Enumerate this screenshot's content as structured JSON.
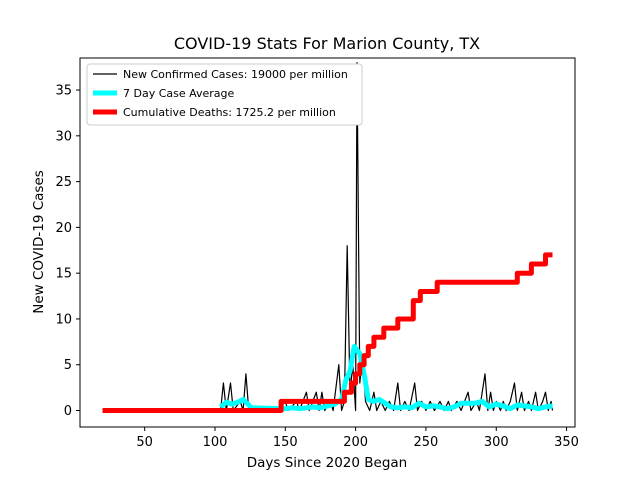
{
  "chart_data": {
    "type": "line",
    "title": "COVID-19 Stats For Marion County, TX",
    "xlabel": "Days Since 2020 Began",
    "ylabel": "New COVID-19 Cases",
    "xlim": [
      4,
      356
    ],
    "ylim": [
      -1.8,
      38.5
    ],
    "x_ticks": [
      50,
      100,
      150,
      200,
      250,
      300,
      350
    ],
    "y_ticks": [
      0,
      5,
      10,
      15,
      20,
      25,
      30,
      35
    ],
    "grid": false,
    "legend_position": "top-left",
    "series": [
      {
        "name": "New Confirmed Cases: 19000 per million",
        "color": "#000000",
        "points": [
          [
            20,
            0
          ],
          [
            104,
            0
          ],
          [
            106,
            3
          ],
          [
            108,
            0
          ],
          [
            111,
            3
          ],
          [
            113,
            0
          ],
          [
            118,
            1
          ],
          [
            120,
            0
          ],
          [
            122,
            4
          ],
          [
            124,
            0
          ],
          [
            145,
            0
          ],
          [
            150,
            1
          ],
          [
            152,
            0
          ],
          [
            158,
            1
          ],
          [
            160,
            0
          ],
          [
            165,
            2
          ],
          [
            167,
            0
          ],
          [
            172,
            2
          ],
          [
            174,
            0
          ],
          [
            176,
            2
          ],
          [
            178,
            0
          ],
          [
            182,
            1
          ],
          [
            184,
            0
          ],
          [
            188,
            5
          ],
          [
            190,
            0
          ],
          [
            192,
            1
          ],
          [
            194,
            18
          ],
          [
            196,
            2
          ],
          [
            198,
            5
          ],
          [
            200,
            0
          ],
          [
            201,
            38
          ],
          [
            203,
            3
          ],
          [
            205,
            6
          ],
          [
            207,
            1
          ],
          [
            210,
            0
          ],
          [
            213,
            2
          ],
          [
            215,
            0
          ],
          [
            218,
            1
          ],
          [
            221,
            0
          ],
          [
            224,
            1
          ],
          [
            227,
            0
          ],
          [
            230,
            3
          ],
          [
            232,
            0
          ],
          [
            235,
            1
          ],
          [
            238,
            0
          ],
          [
            242,
            3
          ],
          [
            244,
            0
          ],
          [
            247,
            1
          ],
          [
            250,
            0
          ],
          [
            253,
            1
          ],
          [
            256,
            0
          ],
          [
            260,
            1
          ],
          [
            263,
            0
          ],
          [
            266,
            1
          ],
          [
            268,
            0
          ],
          [
            272,
            1
          ],
          [
            275,
            0
          ],
          [
            280,
            2
          ],
          [
            282,
            0
          ],
          [
            286,
            1
          ],
          [
            288,
            0
          ],
          [
            292,
            4
          ],
          [
            294,
            0
          ],
          [
            296,
            2
          ],
          [
            298,
            0
          ],
          [
            300,
            1
          ],
          [
            303,
            0
          ],
          [
            305,
            1
          ],
          [
            307,
            0
          ],
          [
            310,
            1
          ],
          [
            313,
            3
          ],
          [
            315,
            0
          ],
          [
            318,
            2
          ],
          [
            320,
            0
          ],
          [
            323,
            1
          ],
          [
            325,
            0
          ],
          [
            328,
            2
          ],
          [
            330,
            0
          ],
          [
            333,
            1
          ],
          [
            335,
            2
          ],
          [
            337,
            0
          ],
          [
            339,
            1
          ],
          [
            340,
            0
          ]
        ]
      },
      {
        "name": "7 Day Case Average",
        "color": "#00ffff",
        "points": [
          [
            104,
            0.4
          ],
          [
            108,
            0.9
          ],
          [
            112,
            0.7
          ],
          [
            116,
            0.9
          ],
          [
            120,
            1.2
          ],
          [
            124,
            0.6
          ],
          [
            126,
            0.3
          ],
          [
            150,
            0.2
          ],
          [
            155,
            0.3
          ],
          [
            160,
            0.2
          ],
          [
            165,
            0.3
          ],
          [
            170,
            0.4
          ],
          [
            175,
            0.3
          ],
          [
            180,
            0.5
          ],
          [
            185,
            0.7
          ],
          [
            190,
            1.2
          ],
          [
            193,
            3.3
          ],
          [
            196,
            4.3
          ],
          [
            199,
            7.0
          ],
          [
            203,
            6.2
          ],
          [
            206,
            4.0
          ],
          [
            209,
            1.2
          ],
          [
            213,
            1.0
          ],
          [
            217,
            1.2
          ],
          [
            221,
            0.8
          ],
          [
            225,
            0.4
          ],
          [
            230,
            0.3
          ],
          [
            235,
            0.4
          ],
          [
            240,
            0.3
          ],
          [
            245,
            0.8
          ],
          [
            250,
            0.4
          ],
          [
            255,
            0.5
          ],
          [
            260,
            0.4
          ],
          [
            265,
            0.2
          ],
          [
            270,
            0.4
          ],
          [
            275,
            0.8
          ],
          [
            280,
            0.8
          ],
          [
            285,
            0.8
          ],
          [
            290,
            1.0
          ],
          [
            295,
            0.4
          ],
          [
            300,
            0.7
          ],
          [
            305,
            0.5
          ],
          [
            310,
            0.2
          ],
          [
            315,
            0.6
          ],
          [
            320,
            0.5
          ],
          [
            325,
            0.4
          ],
          [
            330,
            0.2
          ],
          [
            335,
            0.4
          ],
          [
            340,
            0.5
          ]
        ]
      },
      {
        "name": "Cumulative Deaths: 1725.2 per million",
        "color": "#ff0000",
        "step": true,
        "points": [
          [
            20,
            0
          ],
          [
            147,
            1
          ],
          [
            192,
            2
          ],
          [
            197,
            3
          ],
          [
            200,
            4
          ],
          [
            203,
            5
          ],
          [
            206,
            6
          ],
          [
            209,
            7
          ],
          [
            213,
            8
          ],
          [
            220,
            9
          ],
          [
            230,
            10
          ],
          [
            241,
            12
          ],
          [
            246,
            13
          ],
          [
            258,
            14
          ],
          [
            315,
            15
          ],
          [
            325,
            16
          ],
          [
            335,
            17
          ],
          [
            340,
            17
          ]
        ]
      }
    ]
  }
}
